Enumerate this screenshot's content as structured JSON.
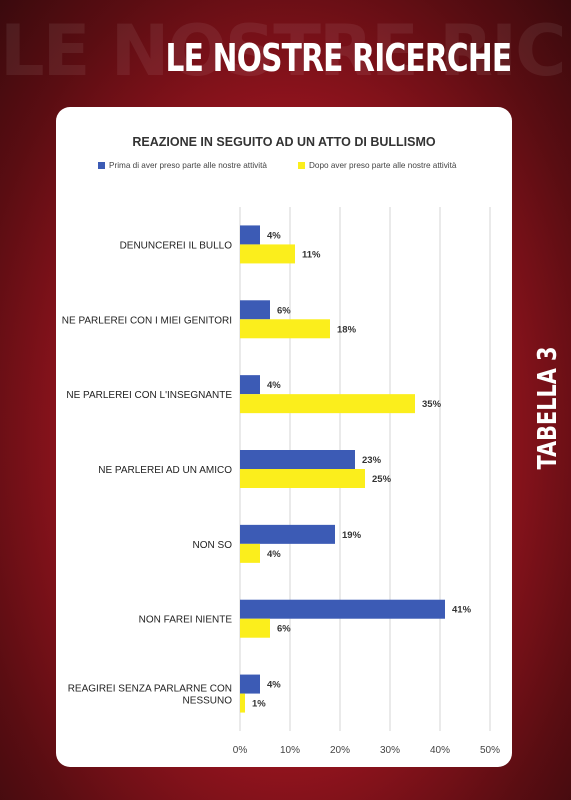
{
  "header": {
    "bg_word": "LE NOSTRE RICERCHE",
    "title": "LE NOSTRE RICERCHE",
    "side_label": "TABELLA 3"
  },
  "colors": {
    "before": "#3c5bb5",
    "after": "#fbee1c",
    "grid": "#d6d6d6"
  },
  "chart_data": {
    "type": "bar",
    "orientation": "horizontal",
    "title": "REAZIONE IN SEGUITO AD UN ATTO DI BULLISMO",
    "categories": [
      [
        "DENUNCEREI IL BULLO"
      ],
      [
        "NE PARLEREI CON I MIEI GENITORI"
      ],
      [
        "NE PARLEREI CON L'INSEGNANTE"
      ],
      [
        "NE PARLEREI AD UN AMICO"
      ],
      [
        "NON SO"
      ],
      [
        "NON FAREI NIENTE"
      ],
      [
        "REAGIREI SENZA PARLARNE CON",
        "NESSUNO"
      ]
    ],
    "series": [
      {
        "name": "Prima di aver preso parte alle nostre attività",
        "values": [
          4,
          6,
          4,
          23,
          19,
          41,
          4
        ],
        "labels": [
          "4%",
          "6%",
          "4%",
          "23%",
          "19%",
          "41%",
          "4%"
        ]
      },
      {
        "name": "Dopo aver preso parte alle nostre attività",
        "values": [
          11,
          18,
          35,
          25,
          4,
          6,
          1
        ],
        "labels": [
          "11%",
          "18%",
          "35%",
          "25%",
          "4%",
          "6%",
          "1%"
        ]
      }
    ],
    "xlim": [
      0,
      50
    ],
    "xticks": [
      "0%",
      "10%",
      "20%",
      "30%",
      "40%",
      "50%"
    ],
    "grid": true,
    "legend_position": "top"
  }
}
